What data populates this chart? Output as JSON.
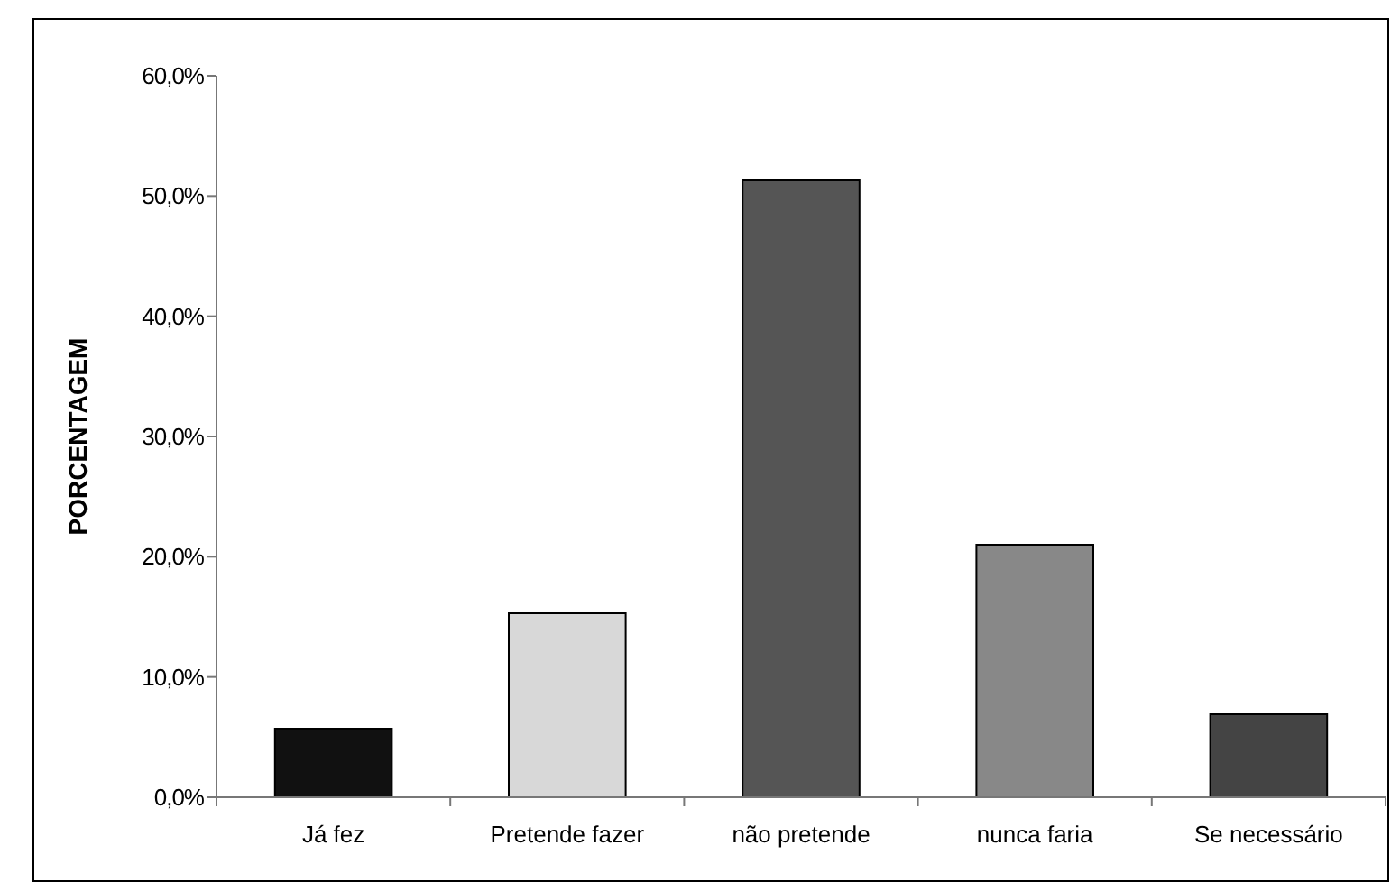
{
  "chart_data": {
    "type": "bar",
    "ylabel": "PORCENTAGEM",
    "categories": [
      "Já fez",
      "Pretende fazer",
      "não pretende",
      "nunca faria",
      "Se necessário"
    ],
    "values": [
      5.7,
      15.3,
      51.3,
      21.0,
      6.9
    ],
    "colors": [
      "#111111",
      "#d8d8d8",
      "#555555",
      "#888888",
      "#444444"
    ],
    "ylim": [
      0,
      60
    ],
    "yticks": [
      {
        "value": 0,
        "label": "0,0%"
      },
      {
        "value": 10,
        "label": "10,0%"
      },
      {
        "value": 20,
        "label": "20,0%"
      },
      {
        "value": 30,
        "label": "30,0%"
      },
      {
        "value": 40,
        "label": "40,0%"
      },
      {
        "value": 50,
        "label": "50,0%"
      },
      {
        "value": 60,
        "label": "60,0%"
      }
    ],
    "grid": false
  }
}
